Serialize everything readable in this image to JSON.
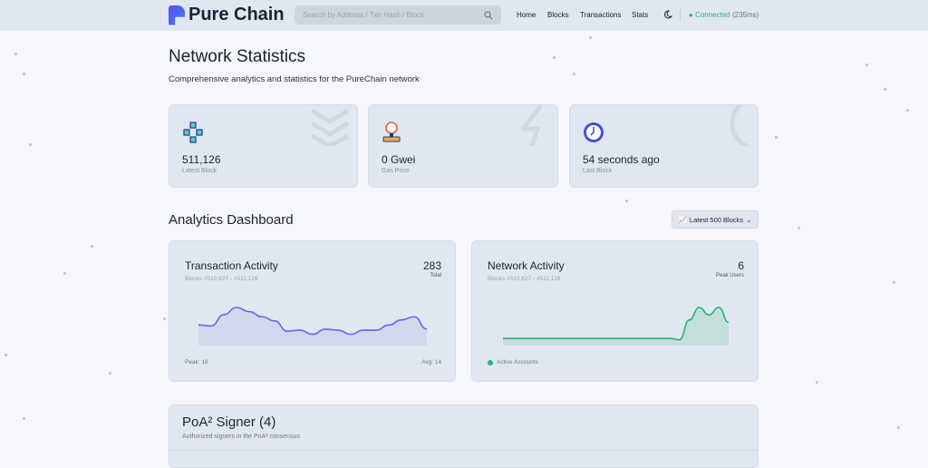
{
  "header": {
    "brand": "Pure Chain",
    "search_placeholder": "Search by Address / Txn Hash / Block",
    "nav": [
      "Home",
      "Blocks",
      "Transactions",
      "Stats"
    ],
    "status": "Connected",
    "latency": "(235ms)",
    "status_color": "#1fb77a"
  },
  "page": {
    "title": "Network Statistics",
    "subtitle": "Comprehensive analytics and statistics for the PureChain network"
  },
  "stats": [
    {
      "value": "511,126",
      "label": "Latest Block",
      "icon": "blocks-icon"
    },
    {
      "value": "0 Gwei",
      "label": "Gas Price",
      "icon": "gas-gauge-icon"
    },
    {
      "value": "54 seconds ago",
      "label": "Last Block",
      "icon": "clock-icon"
    }
  ],
  "analytics": {
    "title": "Analytics Dashboard",
    "range_select": "Latest 500 Blocks",
    "tx": {
      "title": "Transaction Activity",
      "range": "Blocks #510,627 - #511,126",
      "total": "283",
      "total_label": "Total",
      "peak": "Peak: 18",
      "avg": "Avg: 14",
      "color": "#6366f1",
      "values": [
        9.5,
        9,
        14.5,
        18,
        16,
        13.5,
        11.5,
        6.5,
        7,
        5,
        7.5,
        7,
        5,
        7,
        7,
        9.5,
        12,
        13.5,
        7.5
      ]
    },
    "net": {
      "title": "Network Activity",
      "range": "Blocks #510,627 - #511,126",
      "peak": "6",
      "peak_label": "Peak Users",
      "legend": "Active Accounts",
      "color": "#1fb77a",
      "values": [
        1,
        1,
        1,
        1,
        1,
        1,
        1,
        1,
        1,
        1,
        1,
        1,
        1,
        1,
        1,
        1,
        1,
        1,
        0.8,
        4,
        6,
        4.8,
        6,
        3.6
      ]
    }
  },
  "signers": {
    "title": "PoA² Signer (4)",
    "subtitle": "Authorized signers in the PoA² consensus"
  }
}
